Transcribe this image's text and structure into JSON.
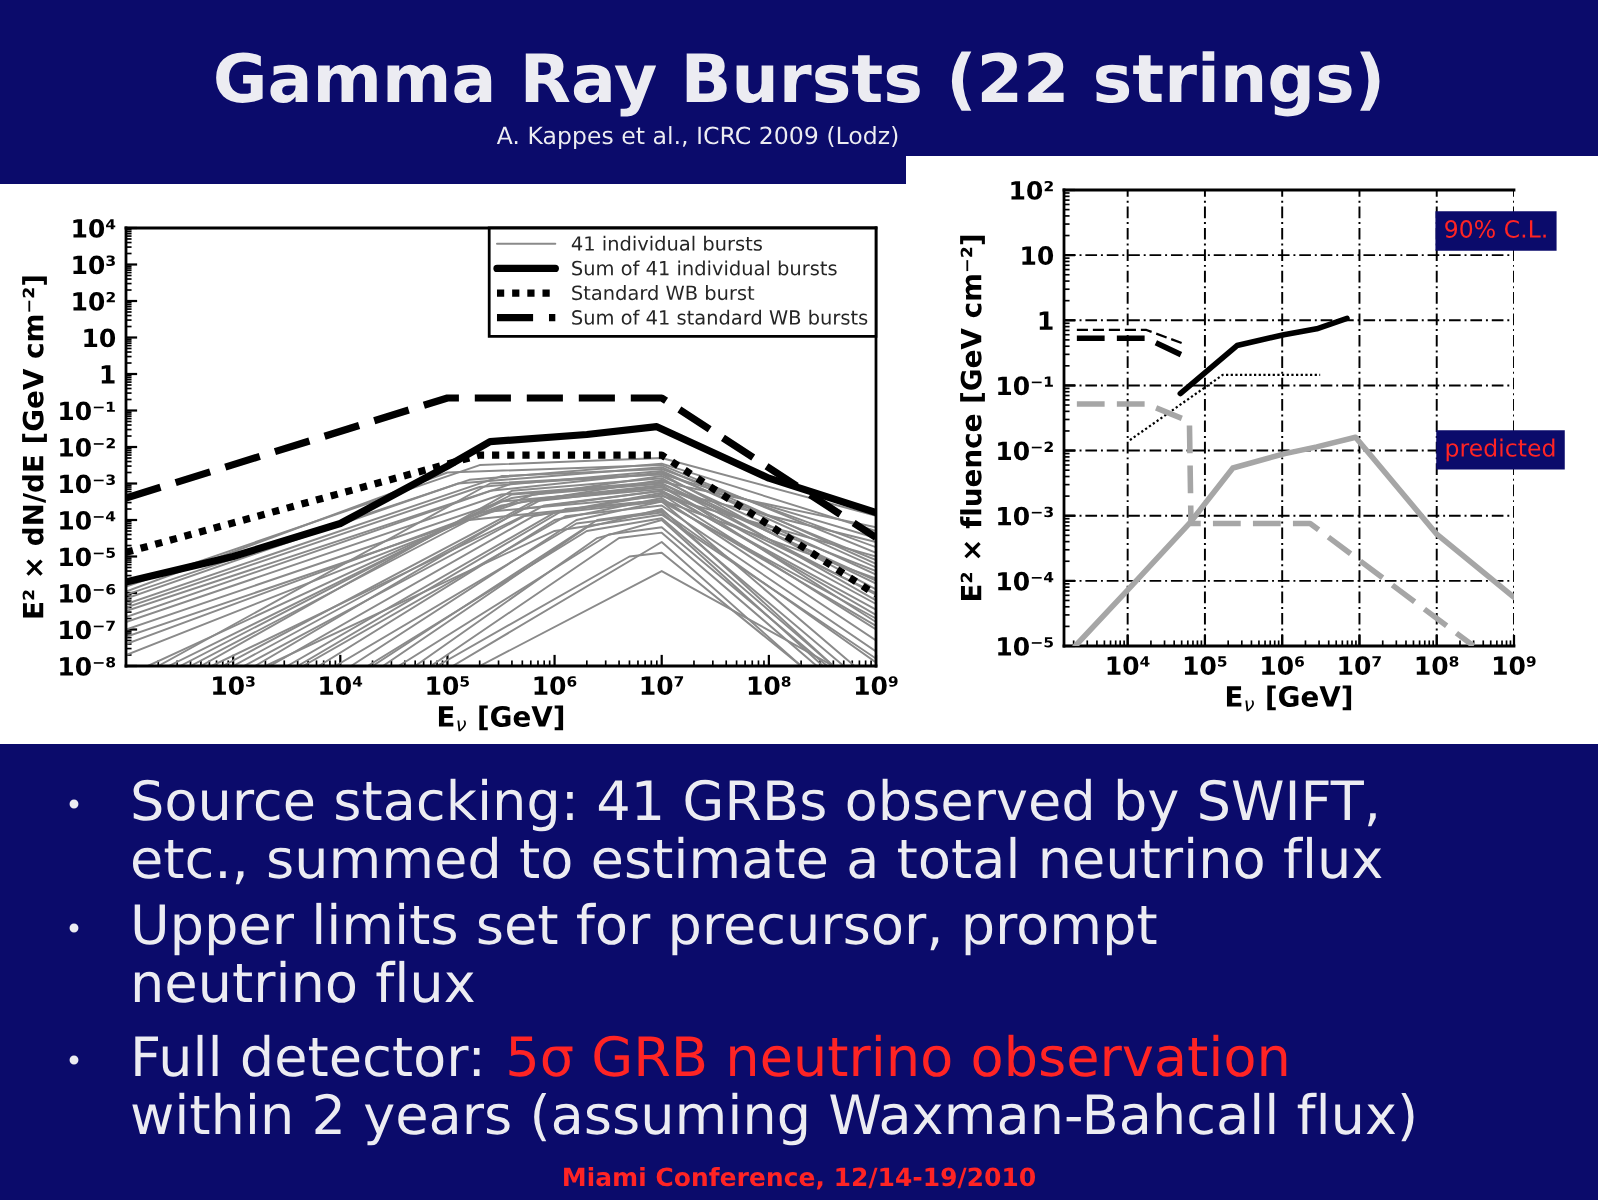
{
  "chart_data": [
    {
      "type": "other",
      "title": "Gamma Ray Bursts (22 strings)",
      "subtitle": "A. Kappes et al., ICRC 2009 (Lodz)"
    },
    {
      "type": "line",
      "xlabel": "E$_{ν}$ [GeV]",
      "ylabel": "E² × dN/dE [GeV cm⁻²]",
      "log": "xy",
      "legend": "top right",
      "xlim": [
        100,
        1000000000.0
      ],
      "ylim": [
        1e-08,
        10000.0
      ],
      "xticks": [
        {
          "value": 1000.0,
          "label": "10³"
        },
        {
          "value": 10000.0,
          "label": "10⁴"
        },
        {
          "value": 100000.0,
          "label": "10⁵"
        },
        {
          "value": 1000000.0,
          "label": "10⁶"
        },
        {
          "value": 10000000.0,
          "label": "10⁷"
        },
        {
          "value": 100000000.0,
          "label": "10⁸"
        },
        {
          "value": 1000000000.0,
          "label": "10⁹"
        }
      ],
      "yticks": [
        {
          "value": 1e-08,
          "label": "10⁻⁸"
        },
        {
          "value": 1e-07,
          "label": "10⁻⁷"
        },
        {
          "value": 1e-06,
          "label": "10⁻⁶"
        },
        {
          "value": 1e-05,
          "label": "10⁻⁵"
        },
        {
          "value": 0.0001,
          "label": "10⁻⁴"
        },
        {
          "value": 0.001,
          "label": "10⁻³"
        },
        {
          "value": 0.01,
          "label": "10⁻²"
        },
        {
          "value": 0.1,
          "label": "10⁻¹"
        },
        1,
        10,
        {
          "value": 100,
          "label": "10²"
        },
        {
          "value": 1000,
          "label": "10³"
        },
        {
          "value": 10000.0,
          "label": "10⁴"
        }
      ],
      "series": [
        {
          "name": "41 individual bursts",
          "color": "#8a8a8a",
          "x": [
            100,
            200000.0,
            10000000.0,
            1000000000.0
          ],
          "values": [
            1.5e-06,
            0.0032,
            0.005,
            0.00013
          ]
        },
        {
          "color": "#8a8a8a",
          "x": [
            100,
            160000.0,
            10000000.0,
            1000000000.0
          ],
          "values": [
            9e-07,
            0.00126,
            0.0035,
            5e-05
          ]
        },
        {
          "color": "#8a8a8a",
          "x": [
            100,
            320000.0,
            10000000.0,
            1000000000.0
          ],
          "values": [
            5e-07,
            0.0016,
            0.0025,
            1.8e-05
          ]
        },
        {
          "color": "#8a8a8a",
          "x": [
            100,
            250000.0,
            10000000.0,
            1000000000.0
          ],
          "values": [
            3.2e-07,
            0.00063,
            0.002,
            8e-06
          ]
        },
        {
          "color": "#8a8a8a",
          "x": [
            100,
            400000.0,
            10000000.0,
            1000000000.0
          ],
          "values": [
            1e-07,
            0.0004,
            0.0016,
            3.2e-06
          ]
        },
        {
          "color": "#8a8a8a",
          "x": [
            100,
            320000.0,
            10000000.0,
            1000000000.0
          ],
          "values": [
            4e-08,
            0.00025,
            0.00126,
            1.8e-06
          ]
        },
        {
          "color": "#8a8a8a",
          "x": [
            320,
            400000.0,
            10000000.0,
            1000000000.0
          ],
          "values": [
            1e-08,
            0.0005,
            0.001,
            9e-07
          ]
        },
        {
          "color": "#8a8a8a",
          "x": [
            800,
            630000.0,
            10000000.0,
            1000000000.0
          ],
          "values": [
            1e-08,
            0.00032,
            0.0008,
            5e-07
          ]
        },
        {
          "color": "#8a8a8a",
          "x": [
            1600,
            500000.0,
            10000000.0,
            1000000000.0
          ],
          "values": [
            1e-08,
            0.0002,
            0.00063,
            2.5e-07
          ]
        },
        {
          "color": "#8a8a8a",
          "x": [
            3200,
            1000000.0,
            10000000.0,
            1000000000.0
          ],
          "values": [
            1e-08,
            0.00016,
            0.0005,
            1e-07
          ]
        },
        {
          "color": "#8a8a8a",
          "x": [
            6300,
            1000000.0,
            10000000.0,
            1000000000.0
          ],
          "values": [
            1e-08,
            0.0001,
            0.0004,
            5e-08
          ]
        },
        {
          "color": "#8a8a8a",
          "x": [
            12600,
            1600000.0,
            10000000.0,
            630000000.0
          ],
          "values": [
            1e-08,
            0.0001,
            0.00032,
            1e-08
          ]
        },
        {
          "color": "#8a8a8a",
          "x": [
            25000,
            2000000.0,
            10000000.0,
            400000000.0
          ],
          "values": [
            1e-08,
            6.3e-05,
            0.0002,
            1e-08
          ]
        },
        {
          "color": "#8a8a8a",
          "x": [
            50000,
            2500000.0,
            10000000.0,
            320000000.0
          ],
          "values": [
            1e-08,
            3.2e-05,
            0.0001,
            1e-08
          ]
        },
        {
          "color": "#8a8a8a",
          "x": [
            112000,
            10000000.0,
            200000000.0
          ],
          "values": [
            1e-08,
            2.5e-05,
            1e-08
          ]
        },
        {
          "color": "#8a8a8a",
          "x": [
            200000.0,
            10000000.0,
            400000000.0
          ],
          "values": [
            1e-08,
            4e-06,
            1e-08
          ]
        },
        {
          "color": "#8a8a8a",
          "x": [
            100,
            100000.0,
            10000000.0,
            1000000000.0
          ],
          "values": [
            1.1e-06,
            0.002,
            0.0032,
            1.26e-05
          ]
        },
        {
          "color": "#8a8a8a",
          "x": [
            100,
            200000.0,
            10000000.0,
            1000000000.0
          ],
          "values": [
            4e-07,
            0.0008,
            0.0022,
            5e-06
          ]
        },
        {
          "color": "#8a8a8a",
          "x": [
            200,
            250000.0,
            10000000.0,
            1000000000.0
          ],
          "values": [
            1e-08,
            0.001,
            0.0018,
            1.26e-06
          ]
        },
        {
          "color": "#8a8a8a",
          "x": [
            500,
            400000.0,
            10000000.0,
            1000000000.0
          ],
          "values": [
            1e-08,
            0.00063,
            0.0014,
            6.3e-07
          ]
        },
        {
          "color": "#8a8a8a",
          "x": [
            1000,
            800000.0,
            10000000.0,
            1000000000.0
          ],
          "values": [
            1e-08,
            0.0004,
            0.0009,
            1.6e-07
          ]
        },
        {
          "color": "#8a8a8a",
          "x": [
            2200,
            630000.0,
            10000000.0,
            1000000000.0
          ],
          "values": [
            1e-08,
            0.000126,
            0.00056,
            3.5e-07
          ]
        },
        {
          "color": "#8a8a8a",
          "x": [
            4500,
            1260000.0,
            10000000.0,
            1000000000.0
          ],
          "values": [
            1e-08,
            0.000126,
            0.00025,
            2.5e-08
          ]
        },
        {
          "color": "#8a8a8a",
          "x": [
            9000,
            1600000.0,
            10000000.0,
            500000000.0
          ],
          "values": [
            1e-08,
            8e-05,
            0.00016,
            1e-08
          ]
        },
        {
          "color": "#8a8a8a",
          "x": [
            18000,
            2000000.0,
            10000000.0,
            400000000.0
          ],
          "values": [
            1e-08,
            5e-05,
            0.000112,
            1e-08
          ]
        },
        {
          "color": "#8a8a8a",
          "x": [
            35000,
            3200000.0,
            10000000.0,
            350000000.0
          ],
          "values": [
            1e-08,
            4e-05,
            6.3e-05,
            1e-08
          ]
        },
        {
          "color": "#8a8a8a",
          "x": [
            70000,
            4000000.0,
            10000000.0,
            280000000.0
          ],
          "values": [
            1e-08,
            3.2e-05,
            4.5e-05,
            1e-08
          ]
        },
        {
          "color": "#8a8a8a",
          "x": [
            100,
            320000.0,
            10000000.0,
            1000000000.0
          ],
          "values": [
            1.6e-07,
            0.0005,
            0.00112,
            6.3e-05
          ]
        },
        {
          "color": "#8a8a8a",
          "x": [
            100,
            500000.0,
            10000000.0,
            1000000000.0
          ],
          "values": [
            6.3e-08,
            0.00032,
            0.0007,
            2.5e-05
          ]
        },
        {
          "color": "#8a8a8a",
          "x": [
            160,
            200000.0,
            10000000.0,
            1000000000.0
          ],
          "values": [
            1e-08,
            0.00016,
            0.00045,
            1e-05
          ]
        },
        {
          "color": "#8a8a8a",
          "x": [
            2000,
            1000000.0,
            10000000.0,
            1000000000.0
          ],
          "values": [
            1e-08,
            5e-05,
            0.00014,
            1.6e-08
          ]
        },
        {
          "color": "#8a8a8a",
          "x": [
            400,
            160000.0,
            10000000.0,
            1000000000.0
          ],
          "values": [
            1e-08,
            0.0001,
            0.00035,
            2.5e-06
          ]
        },
        {
          "color": "#8a8a8a",
          "x": [
            100,
            126000.0,
            10000000.0,
            1000000000.0
          ],
          "values": [
            7e-07,
            0.001,
            0.0028,
            6.3e-06
          ]
        },
        {
          "color": "#8a8a8a",
          "x": [
            100,
            400000.0,
            10000000.0,
            1000000000.0
          ],
          "values": [
            2.2e-07,
            0.001,
            0.0018,
            3.2e-05
          ]
        },
        {
          "color": "#8a8a8a",
          "x": [
            250,
            320000.0,
            10000000.0,
            1000000000.0
          ],
          "values": [
            1e-08,
            0.00032,
            0.0008,
            4e-06
          ]
        },
        {
          "color": "#8a8a8a",
          "x": [
            1260,
            800000.0,
            10000000.0,
            1000000000.0
          ],
          "values": [
            1e-08,
            0.00025,
            0.00063,
            1e-06
          ]
        },
        {
          "color": "#8a8a8a",
          "x": [
            4000,
            1260000.0,
            10000000.0,
            1000000000.0
          ],
          "values": [
            1e-08,
            0.0002,
            0.00035,
            1.26e-07
          ]
        },
        {
          "color": "#8a8a8a",
          "x": [
            20000,
            2500000.0,
            10000000.0,
            1000000000.0
          ],
          "values": [
            1e-08,
            0.0001,
            0.00018,
            1.26e-08
          ]
        },
        {
          "color": "#8a8a8a",
          "x": [
            100,
            630000.0,
            10000000.0,
            1000000000.0
          ],
          "values": [
            2e-08,
            0.0005,
            0.001,
            2.2e-06
          ]
        },
        {
          "color": "#8a8a8a",
          "x": [
            630,
            500000.0,
            10000000.0,
            1000000000.0
          ],
          "values": [
            1e-08,
            0.000126,
            0.00032,
            2e-07
          ]
        },
        {
          "color": "#8a8a8a",
          "x": [
            80000,
            5000000.0,
            10000000.0,
            200000000.0
          ],
          "values": [
            1e-08,
            1e-05,
            1.26e-05,
            1e-08
          ]
        },
        {
          "name": "Sum of 41 individual bursts",
          "color": "#000000",
          "x": [
            100,
            1000,
            10000,
            100000,
            250000,
            2000000,
            9000000,
            100000000,
            1000000000
          ],
          "values": [
            2e-06,
            1e-05,
            8e-05,
            0.003,
            0.014,
            0.022,
            0.036,
            0.0014,
            0.00016
          ]
        },
        {
          "name": "Standard WB burst",
          "color": "#000000",
          "line_style": "dotted",
          "x": [
            100,
            200000.0,
            10000000.0,
            1000000000.0
          ],
          "values": [
            1.3e-05,
            0.006,
            0.006,
            9e-07
          ]
        },
        {
          "name": "Sum of 41 standard WB bursts",
          "color": "#000000",
          "line_style": "dashed",
          "x": [
            100,
            100000.0,
            10000000.0,
            1000000000.0
          ],
          "values": [
            0.0004,
            0.22,
            0.22,
            3.3e-05
          ]
        }
      ]
    },
    {
      "type": "line",
      "xlabel": "E$_{ν}$ [GeV]",
      "ylabel": "E² × fluence [GeV cm⁻²]",
      "log": "xy",
      "grid": true,
      "xlim": [
        1500,
        1000000000.0
      ],
      "ylim": [
        1e-05,
        100
      ],
      "xticks": [
        {
          "value": 10000.0,
          "label": "10⁴"
        },
        {
          "value": 100000.0,
          "label": "10⁵"
        },
        {
          "value": 1000000.0,
          "label": "10⁶"
        },
        {
          "value": 10000000.0,
          "label": "10⁷"
        },
        {
          "value": 100000000.0,
          "label": "10⁸"
        },
        {
          "value": 1000000000.0,
          "label": "10⁹"
        }
      ],
      "yticks": [
        {
          "value": 1e-05,
          "label": "10⁻⁵"
        },
        {
          "value": 0.0001,
          "label": "10⁻⁴"
        },
        {
          "value": 0.001,
          "label": "10⁻³"
        },
        {
          "value": 0.01,
          "label": "10⁻²"
        },
        {
          "value": 0.1,
          "label": "10⁻¹"
        },
        1,
        10,
        {
          "value": 100,
          "label": "10²"
        }
      ],
      "annotations": [
        "90% C.L.",
        "predicted"
      ],
      "series": [
        {
          "color": "#000000",
          "line_style": "dashed",
          "x": [
            2200,
            17500,
            58000
          ],
          "values": [
            0.53,
            0.53,
            0.27
          ]
        },
        {
          "color": "#000000",
          "line_style": "dashed",
          "x": [
            2200,
            17500,
            52000
          ],
          "values": [
            0.71,
            0.71,
            0.44
          ]
        },
        {
          "color": "#a6a6a6",
          "line_style": "dashed",
          "x": [
            2200,
            17500,
            63000,
            66000,
            2300000,
            300000000
          ],
          "values": [
            0.052,
            0.052,
            0.028,
            0.00076,
            0.00076,
            1e-05
          ]
        },
        {
          "color": "#000000",
          "x": [
            48000,
            260000,
            1050000,
            2800000,
            6900000
          ],
          "values": [
            0.075,
            0.41,
            0.6,
            0.74,
            1.07
          ]
        },
        {
          "color": "#000000",
          "line_style": "dotted",
          "x": [
            10700,
            170000,
            3100000
          ],
          "values": [
            0.0145,
            0.145,
            0.145
          ]
        },
        {
          "color": "#a6a6a6",
          "x": [
            2100,
            10700,
            63000,
            230000,
            1050000,
            2800000,
            8900000,
            100000000,
            1000000000
          ],
          "values": [
            1e-05,
            7.9e-05,
            0.00076,
            0.0054,
            0.0089,
            0.0114,
            0.016,
            0.00052,
            5.6e-05
          ]
        }
      ]
    },
    {
      "type": "other",
      "annotations": [
        "Source stacking: 41 GRBs observed by SWIFT,",
        "etc., summed to estimate a total neutrino flux",
        "Upper limits set for precursor, prompt",
        "neutrino flux",
        "Full detector:",
        "5σ GRB neutrino observation",
        "within 2 years (assuming Waxman-Bahcall flux)",
        "Miami Conference, 12/14-19/2010"
      ]
    }
  ]
}
